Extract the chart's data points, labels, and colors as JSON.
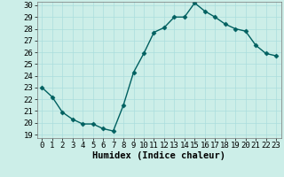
{
  "x": [
    0,
    1,
    2,
    3,
    4,
    5,
    6,
    7,
    8,
    9,
    10,
    11,
    12,
    13,
    14,
    15,
    16,
    17,
    18,
    19,
    20,
    21,
    22,
    23
  ],
  "y": [
    23.0,
    22.2,
    20.9,
    20.3,
    19.9,
    19.9,
    19.5,
    19.3,
    21.5,
    24.3,
    25.9,
    27.7,
    28.1,
    29.0,
    29.0,
    30.2,
    29.5,
    29.0,
    28.4,
    28.0,
    27.8,
    26.6,
    25.9,
    25.7
  ],
  "xlabel": "Humidex (Indice chaleur)",
  "ylim": [
    19,
    30
  ],
  "xlim": [
    -0.5,
    23.5
  ],
  "yticks": [
    19,
    20,
    21,
    22,
    23,
    24,
    25,
    26,
    27,
    28,
    29,
    30
  ],
  "xticks": [
    0,
    1,
    2,
    3,
    4,
    5,
    6,
    7,
    8,
    9,
    10,
    11,
    12,
    13,
    14,
    15,
    16,
    17,
    18,
    19,
    20,
    21,
    22,
    23
  ],
  "line_color": "#006060",
  "marker": "D",
  "marker_size": 2.5,
  "bg_color": "#cceee8",
  "grid_color": "#aadddd",
  "xlabel_fontsize": 7.5,
  "tick_fontsize": 6.5,
  "linewidth": 1.0
}
